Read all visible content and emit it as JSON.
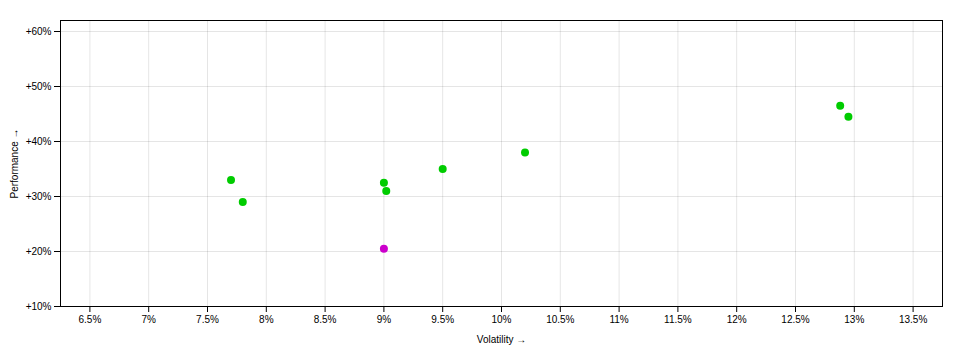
{
  "chart_data": {
    "type": "scatter",
    "xlabel": "Volatility",
    "ylabel": "Performance",
    "series": [
      {
        "color": "#00cc00",
        "x": [
          7.7,
          7.8,
          9.0,
          9.02,
          9.5,
          10.2,
          12.88,
          12.95
        ],
        "values": [
          33.0,
          29.0,
          32.5,
          31.0,
          35.0,
          38.0,
          46.5,
          44.5
        ]
      },
      {
        "color": "#cc00cc",
        "x": [
          9.0
        ],
        "values": [
          20.5
        ]
      }
    ],
    "xlim": [
      6.25,
      13.75
    ],
    "xticks": [
      {
        "value": 6.5,
        "label": "6.5%"
      },
      {
        "value": 7.0,
        "label": "7%"
      },
      {
        "value": 7.5,
        "label": "7.5%"
      },
      {
        "value": 8.0,
        "label": "8%"
      },
      {
        "value": 8.5,
        "label": "8.5%"
      },
      {
        "value": 9.0,
        "label": "9%"
      },
      {
        "value": 9.5,
        "label": "9.5%"
      },
      {
        "value": 10.0,
        "label": "10%"
      },
      {
        "value": 10.5,
        "label": "10.5%"
      },
      {
        "value": 11.0,
        "label": "11%"
      },
      {
        "value": 11.5,
        "label": "11.5%"
      },
      {
        "value": 12.0,
        "label": "12%"
      },
      {
        "value": 12.5,
        "label": "12.5%"
      },
      {
        "value": 13.0,
        "label": "13%"
      },
      {
        "value": 13.5,
        "label": "13.5%"
      }
    ],
    "ylim": [
      10,
      62
    ],
    "yticks": [
      {
        "value": 10,
        "label": "+10%"
      },
      {
        "value": 20,
        "label": "+20%"
      },
      {
        "value": 30,
        "label": "+30%"
      },
      {
        "value": 40,
        "label": "+40%"
      },
      {
        "value": 50,
        "label": "+50%"
      },
      {
        "value": 60,
        "label": "+60%"
      }
    ],
    "grid": true
  }
}
